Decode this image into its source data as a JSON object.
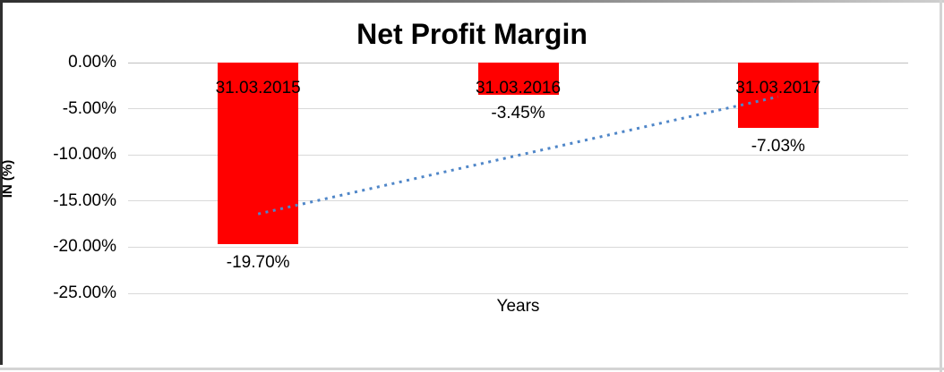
{
  "chart_data": {
    "type": "bar",
    "title": "Net Profit Margin",
    "xlabel": "Years",
    "ylabel": "IN (%)",
    "categories": [
      "31.03.2015",
      "31.03.2016",
      "31.03.2017"
    ],
    "values": [
      -19.7,
      -3.45,
      -7.03
    ],
    "value_labels": [
      "-19.70%",
      "-3.45%",
      "-7.03%"
    ],
    "yticks": [
      "0.00%",
      "-5.00%",
      "-10.00%",
      "-15.00%",
      "-20.00%",
      "-25.00%"
    ],
    "ytick_values": [
      0,
      -5,
      -10,
      -15,
      -20,
      -25
    ],
    "ylim": [
      -25,
      0
    ],
    "grid": "horizontal",
    "legend": "none",
    "bar_color": "#ff0000",
    "trendline": {
      "type": "linear",
      "style": "dotted",
      "color": "#4f86c8",
      "start_value": -16.4,
      "end_value": -3.7
    }
  }
}
